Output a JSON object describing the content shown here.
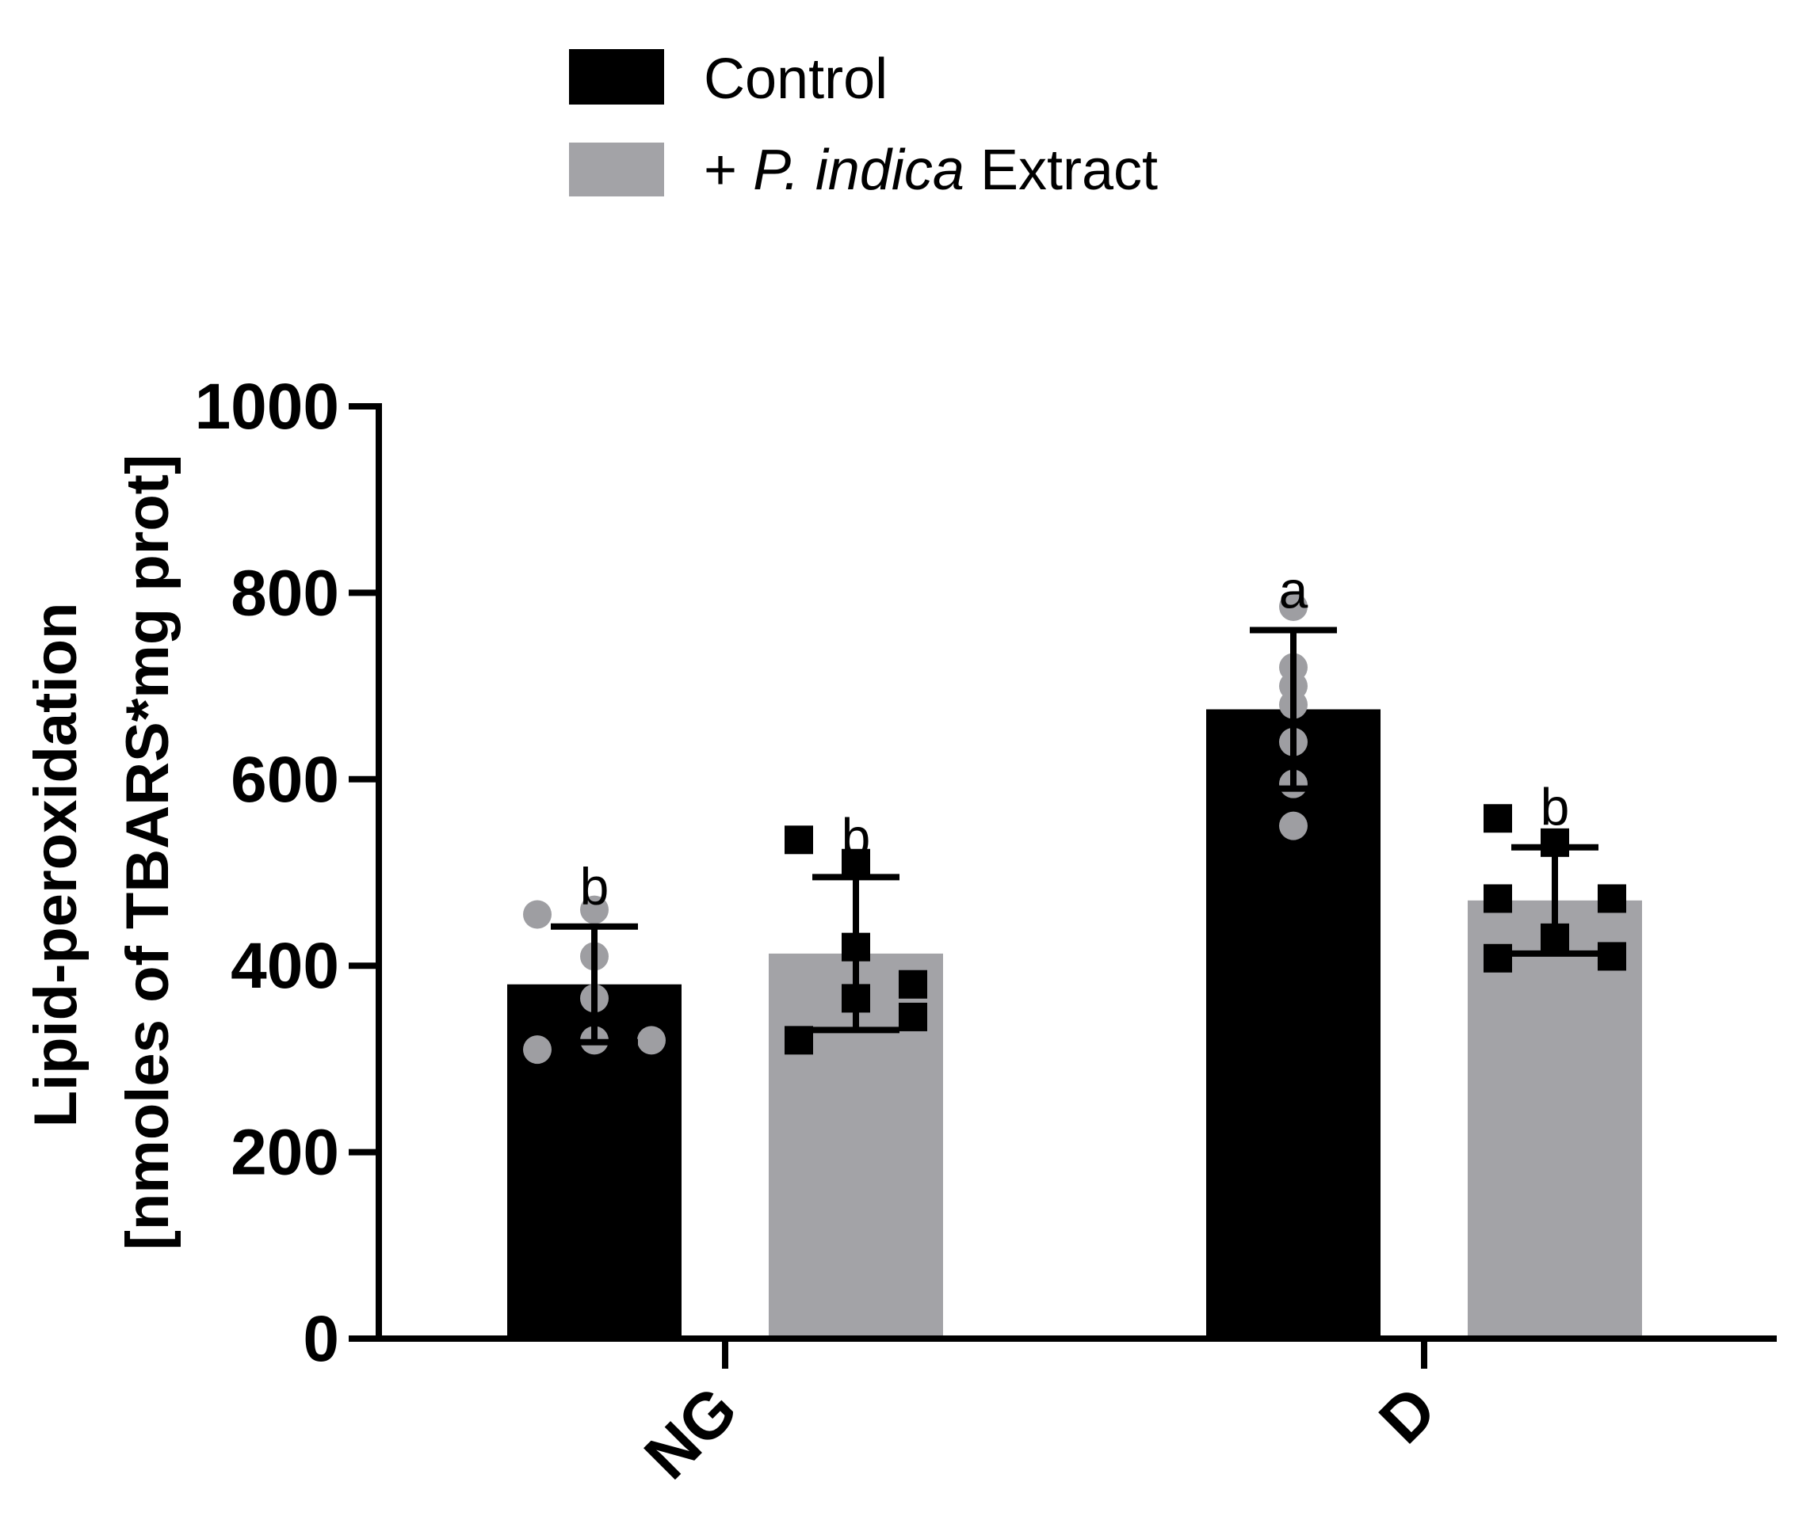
{
  "chart_data": {
    "type": "bar",
    "categories": [
      "NG",
      "D"
    ],
    "series": [
      {
        "name": "Control",
        "color": "#000000",
        "values": [
          380,
          675
        ],
        "errors": [
          62,
          85
        ],
        "points": [
          [
            455,
            460,
            410,
            365,
            320,
            310,
            320
          ],
          [
            785,
            720,
            680,
            640,
            595,
            550,
            700
          ]
        ],
        "marker": "circle",
        "marker_color": "#9e9ea2",
        "letters": [
          "b",
          "a"
        ]
      },
      {
        "name_prefix": "+ ",
        "name_italic": "P. indica",
        "name_suffix": " Extract",
        "color": "#a3a3a7",
        "values": [
          413,
          470
        ],
        "errors": [
          82,
          57
        ],
        "points": [
          [
            535,
            510,
            420,
            365,
            380,
            345,
            320
          ],
          [
            558,
            532,
            472,
            472,
            430,
            408,
            410
          ]
        ],
        "marker": "square",
        "marker_color": "#000000",
        "letters": [
          "b",
          "b"
        ]
      }
    ],
    "ylabel_line1": "Lipid-peroxidation",
    "ylabel_line2": "[nmoles of TBARS*mg prot]",
    "ylim": [
      0,
      1000
    ],
    "yticks": [
      "0",
      "200",
      "400",
      "600",
      "800",
      "1000"
    ],
    "legend_position": "top",
    "grid": false
  }
}
